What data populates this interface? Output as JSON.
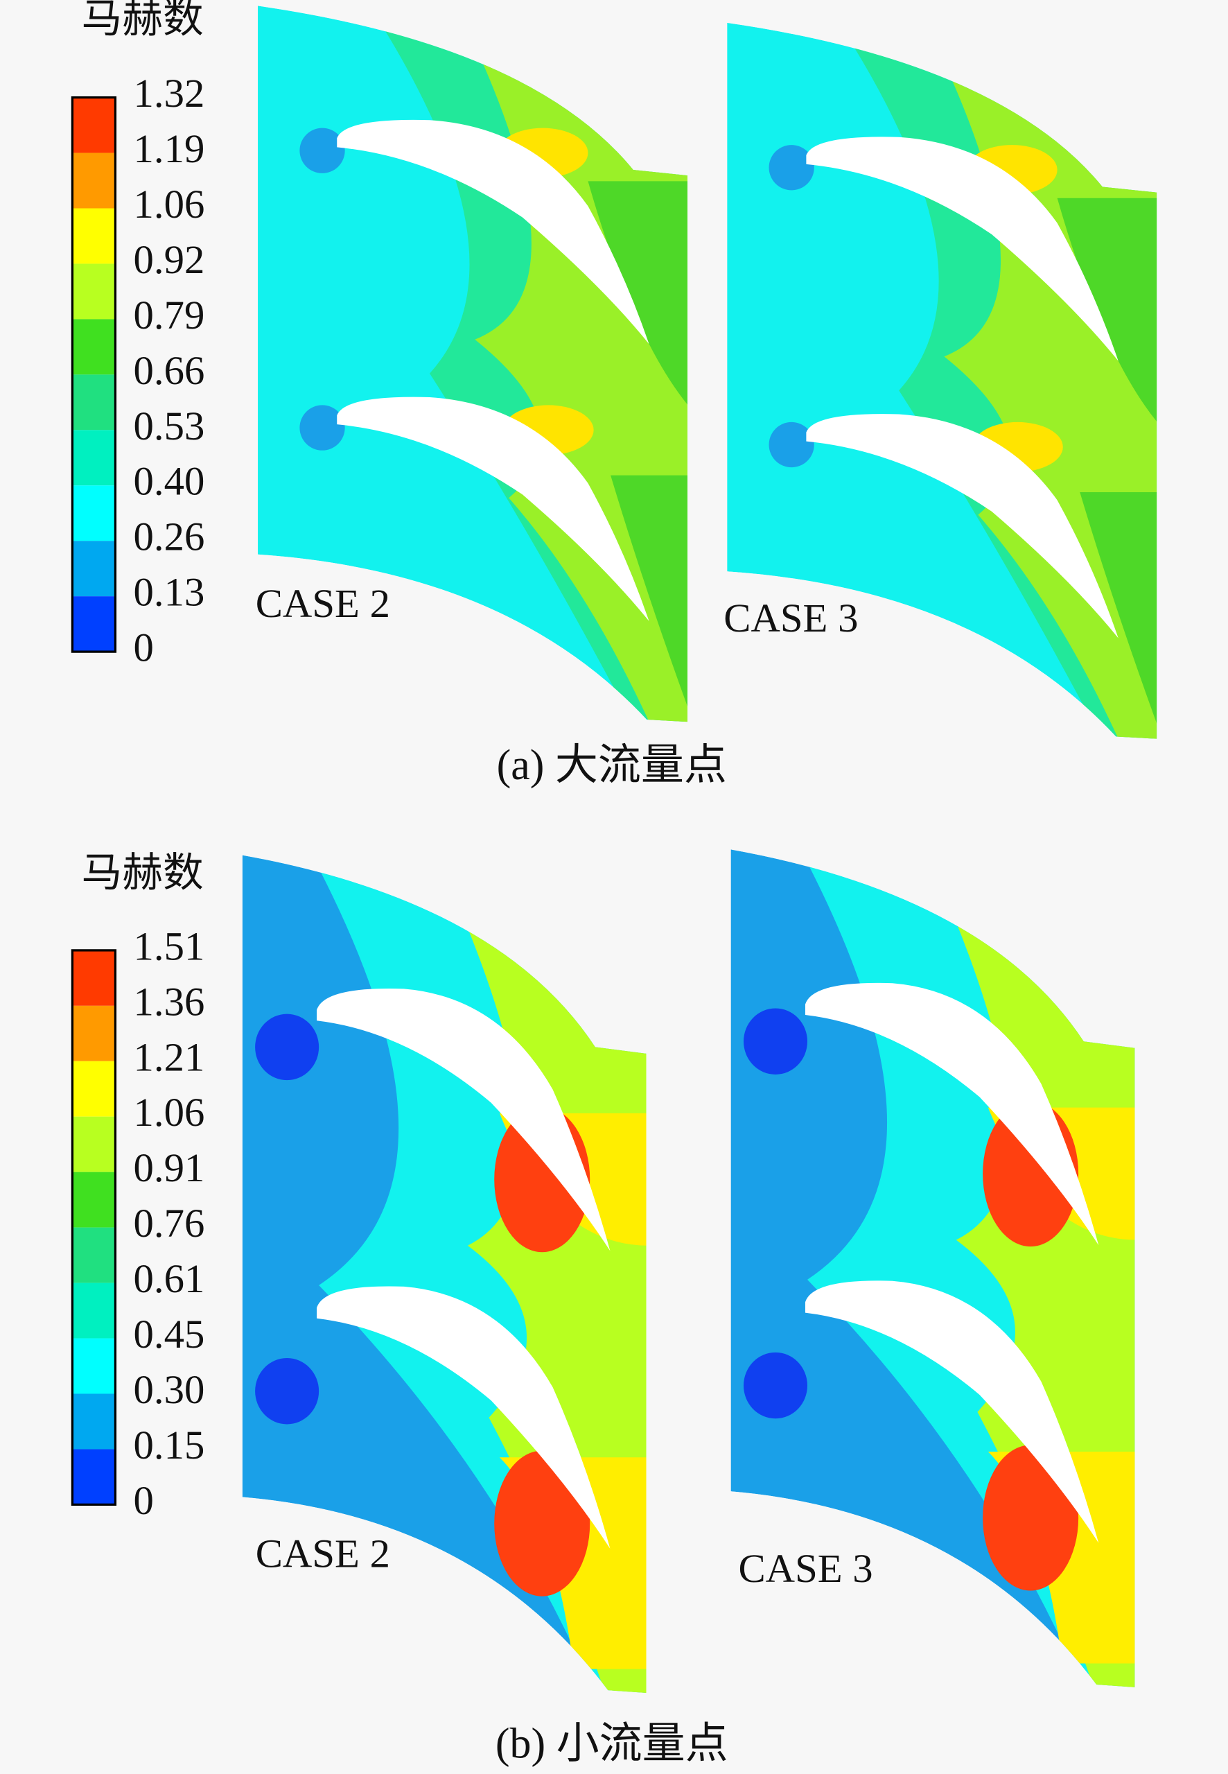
{
  "panels": [
    {
      "legend": {
        "title": "马赫数",
        "ticks": [
          "1.32",
          "1.19",
          "1.06",
          "0.92",
          "0.79",
          "0.66",
          "0.53",
          "0.40",
          "0.26",
          "0.13",
          "0"
        ]
      },
      "plots": [
        {
          "label": "CASE 2"
        },
        {
          "label": "CASE 3"
        }
      ],
      "caption": "(a) 大流量点"
    },
    {
      "legend": {
        "title": "马赫数",
        "ticks": [
          "1.51",
          "1.36",
          "1.21",
          "1.06",
          "0.91",
          "0.76",
          "0.61",
          "0.45",
          "0.30",
          "0.15",
          "0"
        ]
      },
      "plots": [
        {
          "label": "CASE 2"
        },
        {
          "label": "CASE 3"
        }
      ],
      "caption": "(b) 小流量点"
    }
  ]
}
